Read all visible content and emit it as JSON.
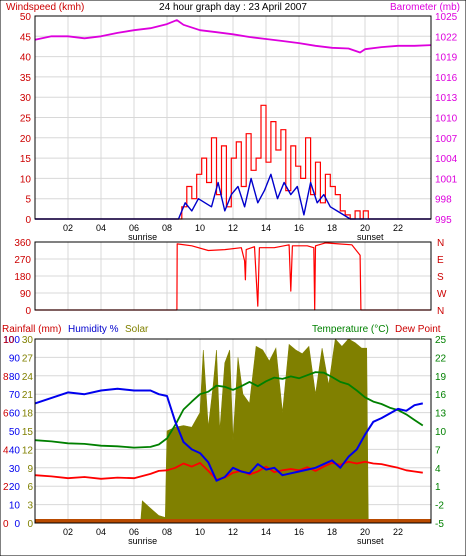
{
  "window": {
    "title": "24 hour graph day : 23 April 2007",
    "markers": {
      "sunrise": "sunrise",
      "sunset": "sunset",
      "sunrise_hour": 6.4,
      "sunset_hour": 20.2
    }
  },
  "colors": {
    "background": "#ffffff",
    "frame": "#000000",
    "grid": "#d8d8d8",
    "windspeed": "#ff0000",
    "avg_wind": "#0000cc",
    "barometer": "#dd00dd",
    "direction": "#ff0000",
    "rainfall": "#b84a00",
    "humidity": "#0000ee",
    "solar": "#808000",
    "temperature": "#008000",
    "dewpoint": "#ff0000",
    "left_axis_text": "#cc0000",
    "right_axis_text": "#dd00dd",
    "temp_axis_text": "#008000"
  },
  "chart_data": [
    {
      "type": "line",
      "title": "24 hour graph day : 23 April 2007",
      "x_ticks": [
        "02",
        "04",
        "06",
        "08",
        "10",
        "12",
        "14",
        "16",
        "18",
        "20",
        "22"
      ],
      "x_range": [
        0,
        24
      ],
      "left_label": "Windspeed (kmh)",
      "right_label": "Barometer (mb)",
      "left_ticks": [
        "0",
        "5",
        "10",
        "15",
        "20",
        "25",
        "30",
        "35",
        "40",
        "45",
        "50"
      ],
      "right_ticks": [
        "995",
        "998",
        "1001",
        "1004",
        "1007",
        "1010",
        "1013",
        "1016",
        "1019",
        "1022",
        "1025"
      ],
      "ylim_left": [
        0,
        50
      ],
      "ylim_right": [
        995,
        1025
      ],
      "grid": true,
      "series": [
        {
          "key": "windspeed",
          "axis": "left",
          "x": [
            0,
            8.6,
            8.9,
            9.2,
            9.5,
            9.8,
            10.1,
            10.4,
            10.7,
            11.0,
            11.3,
            11.6,
            11.9,
            12.2,
            12.5,
            12.8,
            13.1,
            13.4,
            13.7,
            14.0,
            14.3,
            14.6,
            14.9,
            15.2,
            15.5,
            15.8,
            16.1,
            16.4,
            16.7,
            17.0,
            17.3,
            17.6,
            17.9,
            18.2,
            18.5,
            18.8,
            19.1,
            19.4,
            19.7,
            19.9,
            20.2,
            24
          ],
          "values": [
            0,
            0,
            3,
            8,
            5,
            11,
            15,
            9,
            20,
            6,
            18,
            3,
            15,
            19,
            8,
            21,
            12,
            15,
            28,
            14,
            24,
            17,
            22,
            7,
            18,
            13,
            10,
            20,
            6,
            14,
            4,
            11,
            8,
            6,
            2,
            1,
            0,
            2,
            0,
            2,
            0,
            0
          ]
        },
        {
          "key": "avg_wind",
          "axis": "left",
          "x": [
            0,
            8.7,
            9.1,
            9.5,
            9.9,
            10.3,
            10.7,
            11.1,
            11.5,
            11.9,
            12.3,
            12.7,
            13.1,
            13.5,
            13.9,
            14.3,
            14.7,
            15.1,
            15.5,
            15.9,
            16.3,
            16.7,
            17.1,
            17.5,
            17.9,
            18.3,
            18.7,
            19.1,
            19.5,
            24
          ],
          "values": [
            0,
            0,
            4,
            2,
            5,
            4,
            3,
            9,
            2,
            6,
            8,
            3,
            10,
            4,
            7,
            11,
            5,
            9,
            6,
            8,
            1,
            9,
            4,
            6,
            3,
            2,
            1,
            0,
            0,
            0
          ]
        },
        {
          "key": "barometer",
          "axis": "right",
          "x": [
            0,
            1,
            2,
            3,
            4,
            5,
            6,
            7,
            8,
            8.6,
            9,
            10,
            11,
            12,
            13,
            14,
            15,
            16,
            17,
            18,
            19,
            19.7,
            20,
            21,
            22,
            23,
            24
          ],
          "values": [
            1021.5,
            1022,
            1022,
            1021.7,
            1022,
            1022.5,
            1022.9,
            1023.2,
            1023.8,
            1024.4,
            1023.7,
            1022.9,
            1022.6,
            1022.3,
            1021.9,
            1021.6,
            1021.3,
            1021,
            1020.6,
            1020.3,
            1020.2,
            1019.6,
            1020.1,
            1020.4,
            1020.6,
            1020.6,
            1020.7
          ]
        }
      ]
    },
    {
      "type": "line",
      "left_label": "",
      "x_range": [
        0,
        24
      ],
      "left_ticks": [
        "0",
        "90",
        "180",
        "270",
        "360"
      ],
      "right_ticks": [
        "N",
        "W",
        "S",
        "E",
        "N"
      ],
      "ylim": [
        0,
        360
      ],
      "grid": true,
      "series": [
        {
          "key": "direction",
          "x": [
            0,
            8.6,
            8.62,
            9.5,
            10.5,
            11.5,
            12.5,
            12.7,
            12.75,
            12.8,
            13.3,
            13.5,
            13.6,
            14.5,
            15.4,
            15.5,
            15.6,
            16.5,
            16.9,
            16.95,
            17.0,
            17.6,
            18.4,
            19.2,
            19.7,
            19.75,
            24
          ],
          "values": [
            0,
            0,
            350,
            340,
            315,
            320,
            330,
            260,
            160,
            320,
            335,
            20,
            330,
            330,
            345,
            100,
            340,
            340,
            330,
            0,
            340,
            355,
            350,
            345,
            290,
            0,
            0
          ]
        }
      ]
    },
    {
      "type": "line",
      "left_label": "Rainfall (mm)",
      "left_label_2": "Humidity %",
      "left_label_3": "Solar",
      "right_label": "Temperature (°C)",
      "right_label_2": "Dew Point",
      "x_ticks": [
        "02",
        "04",
        "06",
        "08",
        "10",
        "12",
        "14",
        "16",
        "18",
        "20",
        "22"
      ],
      "x_range": [
        0,
        24
      ],
      "rain_ticks": [
        "0",
        "2",
        "4",
        "6",
        "8",
        "10"
      ],
      "humidity_ticks": [
        "0",
        "10",
        "20",
        "30",
        "40",
        "50",
        "60",
        "70",
        "80",
        "90",
        "100"
      ],
      "solar_ticks": [
        "0",
        "3",
        "6",
        "9",
        "12",
        "15",
        "18",
        "21",
        "24",
        "27",
        "30"
      ],
      "temp_ticks": [
        "-5",
        "-2",
        "1",
        "4",
        "7",
        "10",
        "13",
        "16",
        "19",
        "22",
        "25"
      ],
      "ylim_humidity": [
        0,
        100
      ],
      "ylim_temp": [
        -5,
        25
      ],
      "grid": true,
      "series": [
        {
          "key": "solar",
          "axis": "humidity",
          "x": [
            6.4,
            6.5,
            7,
            7.5,
            7.9,
            8.0,
            8.5,
            9,
            9.5,
            10,
            10.2,
            10.5,
            10.8,
            11,
            11.2,
            11.5,
            11.8,
            12,
            12.3,
            12.6,
            13,
            13.4,
            13.8,
            14.2,
            14.6,
            15,
            15.4,
            15.8,
            16.2,
            16.6,
            17,
            17.4,
            17.8,
            18.2,
            18.6,
            19,
            19.4,
            19.8,
            20.1,
            20.2
          ],
          "values": [
            0,
            12,
            8,
            4,
            3,
            50,
            52,
            53,
            52,
            60,
            94,
            52,
            75,
            94,
            50,
            87,
            94,
            45,
            90,
            70,
            65,
            96,
            94,
            88,
            95,
            60,
            97,
            94,
            92,
            96,
            70,
            95,
            75,
            100,
            96,
            100,
            98,
            95,
            95,
            0
          ]
        },
        {
          "key": "humidity",
          "axis": "humidity",
          "x": [
            0,
            1,
            2,
            3,
            4,
            5,
            6,
            7,
            7.5,
            8,
            8.5,
            9,
            9.5,
            10,
            10.5,
            11,
            11.5,
            12,
            12.5,
            13,
            13.5,
            14,
            14.5,
            15,
            15.5,
            16,
            16.5,
            17,
            17.5,
            18,
            18.5,
            19,
            19.5,
            20,
            20.5,
            21,
            22,
            22.5,
            23,
            23.5
          ],
          "values": [
            65,
            68,
            71,
            70,
            72,
            73,
            72,
            72,
            70,
            69,
            55,
            44,
            40,
            38,
            33,
            23,
            25,
            30,
            28,
            27,
            32,
            29,
            30,
            26,
            27,
            28,
            29,
            30,
            32,
            34,
            30,
            36,
            40,
            48,
            55,
            57,
            62,
            61,
            64,
            65
          ]
        },
        {
          "key": "dewpoint",
          "axis": "temp",
          "x": [
            0,
            1,
            2,
            3,
            4,
            5,
            6,
            7,
            7.5,
            8,
            8.5,
            9,
            9.5,
            10,
            10.5,
            11,
            11.5,
            12,
            12.5,
            13,
            13.5,
            14,
            14.5,
            15,
            15.5,
            16,
            16.5,
            17,
            17.5,
            18,
            18.5,
            19,
            19.5,
            20,
            20.5,
            21,
            21.5,
            22,
            22.5,
            23,
            23.5
          ],
          "values": [
            2.8,
            2.6,
            2.3,
            2.5,
            2.2,
            2.4,
            2.3,
            3.0,
            3.5,
            3.6,
            4.0,
            4.7,
            4.2,
            4.8,
            3.5,
            2.1,
            2.4,
            3.2,
            3.5,
            2.9,
            3.4,
            4.2,
            3.3,
            3.6,
            3.8,
            3.6,
            4.1,
            3.5,
            4.2,
            4.8,
            4.5,
            5.0,
            4.7,
            5.0,
            4.7,
            4.6,
            4.3,
            4.0,
            3.6,
            3.4,
            3.2
          ]
        },
        {
          "key": "temperature",
          "axis": "temp",
          "x": [
            0,
            1,
            2,
            3,
            4,
            5,
            6,
            7,
            7.5,
            8,
            8.5,
            9,
            9.5,
            10,
            10.5,
            11,
            11.5,
            12,
            12.5,
            13,
            13.5,
            14,
            14.5,
            15,
            15.5,
            16,
            16.5,
            17,
            17.5,
            18,
            18.5,
            19,
            19.5,
            20,
            20.5,
            21,
            21.5,
            22,
            22.5,
            23,
            23.5
          ],
          "values": [
            8.5,
            8.3,
            8.0,
            7.9,
            7.6,
            7.5,
            7.3,
            7.4,
            7.8,
            8.8,
            11.0,
            13.5,
            14.8,
            16.0,
            16.4,
            17.4,
            17.2,
            16.7,
            17.3,
            18.0,
            17.3,
            18.1,
            18.7,
            18.5,
            18.9,
            18.6,
            19.1,
            19.6,
            19.5,
            18.8,
            18.0,
            17.6,
            16.6,
            15.5,
            14.8,
            14.4,
            13.8,
            13.4,
            12.7,
            11.8,
            10.9
          ]
        },
        {
          "key": "rainfall",
          "axis": "rain",
          "x": [
            0,
            24
          ],
          "values": [
            0,
            0
          ]
        }
      ]
    }
  ]
}
